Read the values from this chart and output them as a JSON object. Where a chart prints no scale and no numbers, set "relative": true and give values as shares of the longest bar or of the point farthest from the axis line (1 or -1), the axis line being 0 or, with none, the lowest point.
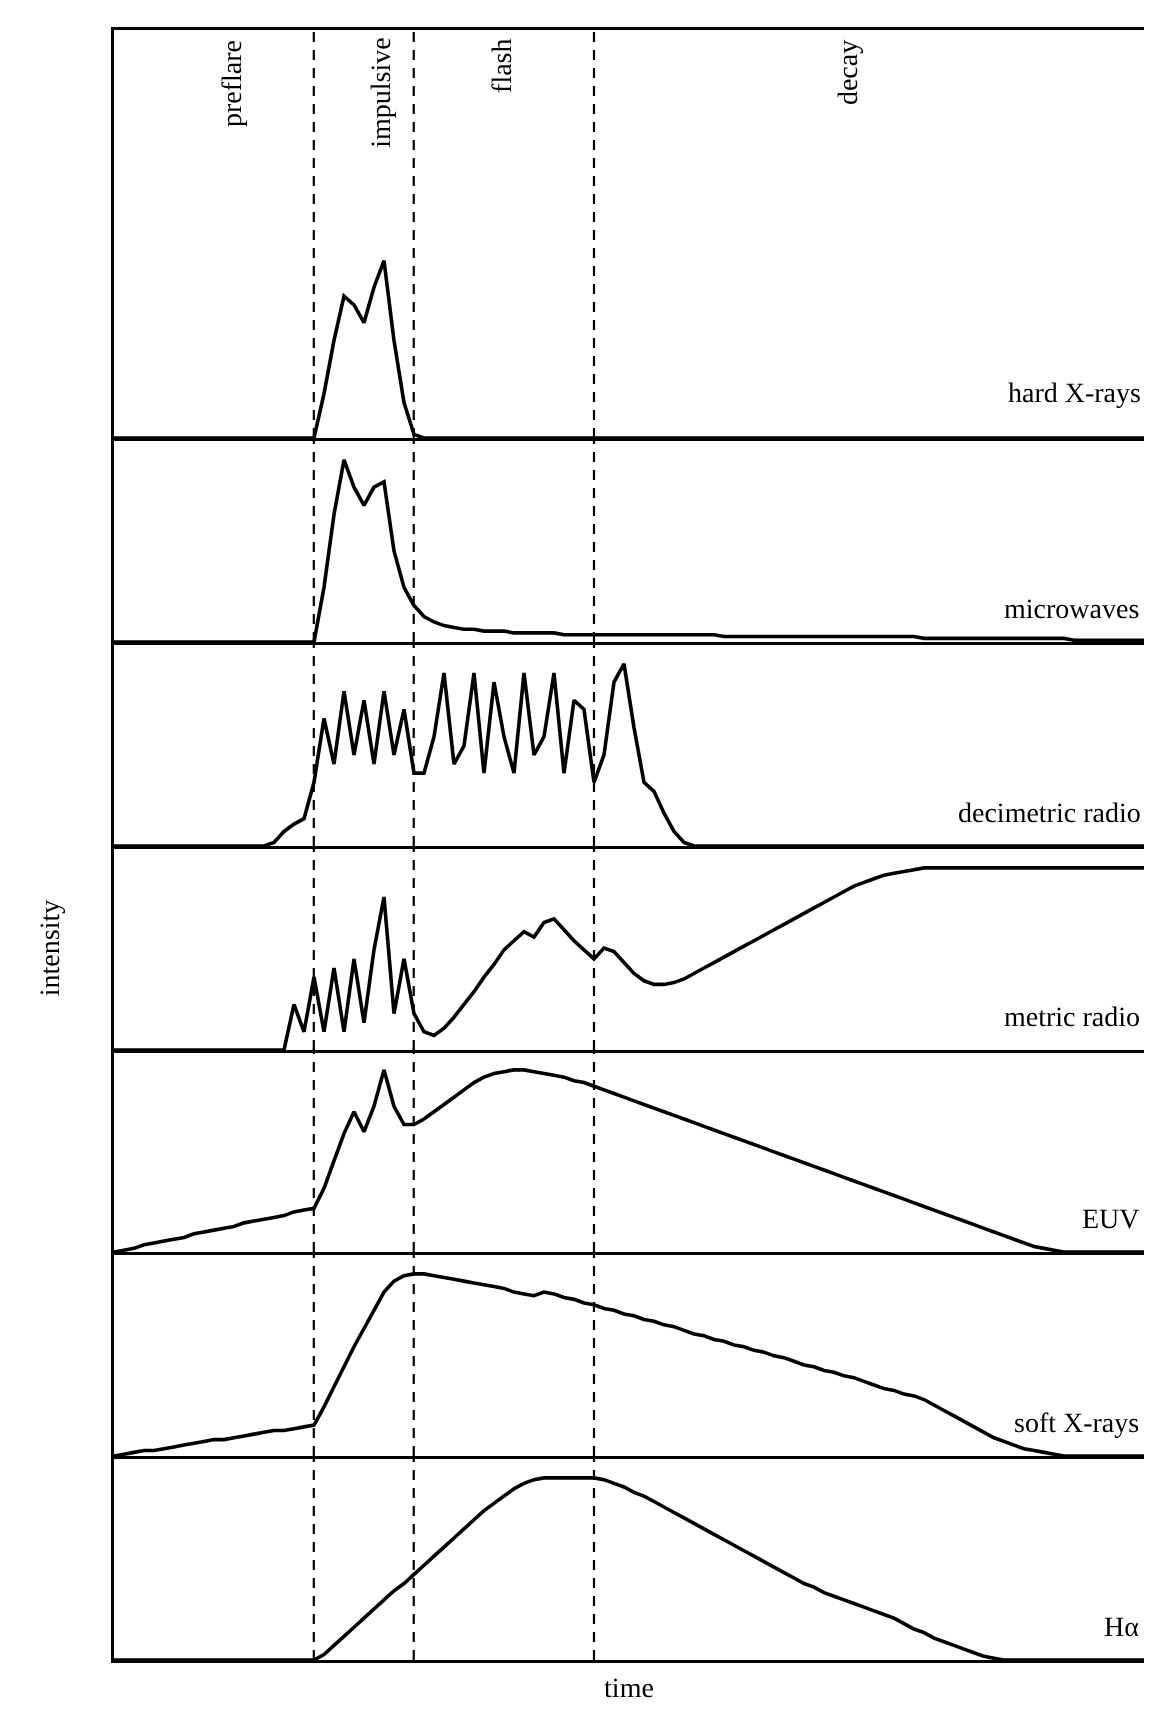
{
  "chart_data": [
    {
      "type": "line",
      "relative": true,
      "legend": false,
      "tick_labels": false,
      "categories": [
        null,
        null,
        null,
        null,
        null,
        null,
        null,
        null,
        null,
        null,
        null,
        null,
        null,
        null,
        null,
        null,
        null,
        null,
        null,
        null,
        null,
        null,
        null,
        null,
        null,
        null,
        null,
        null,
        null,
        null,
        null,
        null,
        null,
        null,
        null,
        null,
        null,
        null,
        null,
        null,
        null,
        null,
        null,
        null,
        null,
        null,
        null,
        null,
        null,
        null,
        null,
        null,
        null,
        null,
        null,
        null,
        null,
        null,
        null,
        null,
        null,
        null,
        null,
        null,
        null,
        null,
        null,
        null,
        null,
        null,
        null,
        null,
        null,
        null,
        null,
        null,
        null,
        null,
        null,
        null,
        null,
        null,
        null,
        null,
        null,
        null,
        null,
        null,
        null,
        null,
        null,
        null,
        null,
        null,
        null,
        null,
        null,
        null,
        null,
        null,
        null,
        null,
        null,
        null
      ],
      "annotations": [
        "preflare",
        "impulsive",
        "flash",
        "decay"
      ],
      "series": [
        {
          "name": "hard X-rays",
          "color": "#000000",
          "values": [
            0,
            0,
            0,
            0,
            0,
            0,
            0,
            0,
            0,
            0,
            0,
            0,
            0,
            0,
            0,
            0,
            0,
            0,
            0,
            0,
            0,
            0.25,
            0.55,
            0.8,
            0.75,
            0.65,
            0.85,
            1,
            0.55,
            0.2,
            0.02,
            0,
            0,
            0,
            0,
            0,
            0,
            0,
            0,
            0,
            0,
            0,
            0,
            0,
            0,
            0,
            0,
            0,
            0,
            0,
            0,
            0,
            0,
            0,
            0,
            0,
            0,
            0,
            0,
            0,
            0,
            0,
            0,
            0,
            0,
            0,
            0,
            0,
            0,
            0,
            0,
            0,
            0,
            0,
            0,
            0,
            0,
            0,
            0,
            0,
            0,
            0,
            0,
            0,
            0,
            0,
            0,
            0,
            0,
            0,
            0,
            0,
            0,
            0,
            0,
            0,
            0,
            0,
            0,
            0,
            0,
            0,
            0,
            0
          ]
        }
      ]
    },
    {
      "type": "line",
      "relative": true,
      "legend": false,
      "tick_labels": false,
      "categories": [
        null,
        null,
        null,
        null,
        null,
        null,
        null,
        null,
        null,
        null,
        null,
        null,
        null,
        null,
        null,
        null,
        null,
        null,
        null,
        null,
        null,
        null,
        null,
        null,
        null,
        null,
        null,
        null,
        null,
        null,
        null,
        null,
        null,
        null,
        null,
        null,
        null,
        null,
        null,
        null,
        null,
        null,
        null,
        null,
        null,
        null,
        null,
        null,
        null,
        null,
        null,
        null,
        null,
        null,
        null,
        null,
        null,
        null,
        null,
        null,
        null,
        null,
        null,
        null,
        null,
        null,
        null,
        null,
        null,
        null,
        null,
        null,
        null,
        null,
        null,
        null,
        null,
        null,
        null,
        null,
        null,
        null,
        null,
        null,
        null,
        null,
        null,
        null,
        null,
        null,
        null,
        null,
        null,
        null,
        null,
        null,
        null,
        null,
        null,
        null,
        null,
        null,
        null,
        null
      ],
      "series": [
        {
          "name": "microwaves",
          "color": "#000000",
          "values": [
            0,
            0,
            0,
            0,
            0,
            0,
            0,
            0,
            0,
            0,
            0,
            0,
            0,
            0,
            0,
            0,
            0,
            0,
            0,
            0,
            0,
            0.3,
            0.7,
            1,
            0.85,
            0.75,
            0.85,
            0.88,
            0.5,
            0.3,
            0.2,
            0.14,
            0.11,
            0.09,
            0.08,
            0.07,
            0.07,
            0.06,
            0.06,
            0.06,
            0.05,
            0.05,
            0.05,
            0.05,
            0.05,
            0.04,
            0.04,
            0.04,
            0.04,
            0.04,
            0.04,
            0.04,
            0.04,
            0.04,
            0.04,
            0.04,
            0.04,
            0.04,
            0.04,
            0.04,
            0.04,
            0.03,
            0.03,
            0.03,
            0.03,
            0.03,
            0.03,
            0.03,
            0.03,
            0.03,
            0.03,
            0.03,
            0.03,
            0.03,
            0.03,
            0.03,
            0.03,
            0.03,
            0.03,
            0.03,
            0.03,
            0.02,
            0.02,
            0.02,
            0.02,
            0.02,
            0.02,
            0.02,
            0.02,
            0.02,
            0.02,
            0.02,
            0.02,
            0.02,
            0.02,
            0.02,
            0.01,
            0.01,
            0.01,
            0.01,
            0.01,
            0.01,
            0.01,
            0.01
          ]
        }
      ]
    },
    {
      "type": "line",
      "relative": true,
      "legend": false,
      "tick_labels": false,
      "categories": [
        null,
        null,
        null,
        null,
        null,
        null,
        null,
        null,
        null,
        null,
        null,
        null,
        null,
        null,
        null,
        null,
        null,
        null,
        null,
        null,
        null,
        null,
        null,
        null,
        null,
        null,
        null,
        null,
        null,
        null,
        null,
        null,
        null,
        null,
        null,
        null,
        null,
        null,
        null,
        null,
        null,
        null,
        null,
        null,
        null,
        null,
        null,
        null,
        null,
        null,
        null,
        null,
        null,
        null,
        null,
        null,
        null,
        null,
        null,
        null,
        null,
        null,
        null,
        null,
        null,
        null,
        null,
        null,
        null,
        null,
        null,
        null,
        null,
        null,
        null,
        null,
        null,
        null,
        null,
        null,
        null,
        null,
        null,
        null,
        null,
        null,
        null,
        null,
        null,
        null,
        null,
        null,
        null,
        null,
        null,
        null,
        null,
        null,
        null,
        null,
        null,
        null,
        null,
        null
      ],
      "series": [
        {
          "name": "decimetric radio",
          "color": "#000000",
          "values": [
            0,
            0,
            0,
            0,
            0,
            0,
            0,
            0,
            0,
            0,
            0,
            0,
            0,
            0,
            0,
            0,
            0.02,
            0.08,
            0.12,
            0.15,
            0.35,
            0.7,
            0.45,
            0.85,
            0.5,
            0.8,
            0.45,
            0.85,
            0.5,
            0.75,
            0.4,
            0.4,
            0.6,
            0.95,
            0.45,
            0.55,
            0.95,
            0.4,
            0.9,
            0.6,
            0.4,
            0.95,
            0.5,
            0.6,
            0.95,
            0.4,
            0.8,
            0.75,
            0.35,
            0.5,
            0.9,
            1,
            0.65,
            0.35,
            0.3,
            0.18,
            0.08,
            0.02,
            0,
            0,
            0,
            0,
            0,
            0,
            0,
            0,
            0,
            0,
            0,
            0,
            0,
            0,
            0,
            0,
            0,
            0,
            0,
            0,
            0,
            0,
            0,
            0,
            0,
            0,
            0,
            0,
            0,
            0,
            0,
            0,
            0,
            0,
            0,
            0,
            0,
            0,
            0,
            0,
            0,
            0,
            0,
            0,
            0,
            0
          ]
        }
      ]
    },
    {
      "type": "line",
      "relative": true,
      "legend": false,
      "tick_labels": false,
      "ylabel": "intensity",
      "categories": [
        null,
        null,
        null,
        null,
        null,
        null,
        null,
        null,
        null,
        null,
        null,
        null,
        null,
        null,
        null,
        null,
        null,
        null,
        null,
        null,
        null,
        null,
        null,
        null,
        null,
        null,
        null,
        null,
        null,
        null,
        null,
        null,
        null,
        null,
        null,
        null,
        null,
        null,
        null,
        null,
        null,
        null,
        null,
        null,
        null,
        null,
        null,
        null,
        null,
        null,
        null,
        null,
        null,
        null,
        null,
        null,
        null,
        null,
        null,
        null,
        null,
        null,
        null,
        null,
        null,
        null,
        null,
        null,
        null,
        null,
        null,
        null,
        null,
        null,
        null,
        null,
        null,
        null,
        null,
        null,
        null,
        null,
        null,
        null,
        null,
        null,
        null,
        null,
        null,
        null,
        null,
        null,
        null,
        null,
        null,
        null,
        null,
        null,
        null,
        null,
        null,
        null,
        null,
        null
      ],
      "series": [
        {
          "name": "metric radio",
          "color": "#000000",
          "values": [
            0,
            0,
            0,
            0,
            0,
            0,
            0,
            0,
            0,
            0,
            0,
            0,
            0,
            0,
            0,
            0,
            0,
            0,
            0.25,
            0.1,
            0.4,
            0.1,
            0.45,
            0.1,
            0.5,
            0.15,
            0.55,
            0.84,
            0.2,
            0.5,
            0.2,
            0.1,
            0.08,
            0.12,
            0.18,
            0.25,
            0.32,
            0.4,
            0.47,
            0.55,
            0.6,
            0.65,
            0.62,
            0.7,
            0.72,
            0.66,
            0.6,
            0.55,
            0.5,
            0.56,
            0.54,
            0.48,
            0.42,
            0.38,
            0.36,
            0.36,
            0.37,
            0.39,
            0.42,
            0.45,
            0.48,
            0.51,
            0.54,
            0.57,
            0.6,
            0.63,
            0.66,
            0.69,
            0.72,
            0.75,
            0.78,
            0.81,
            0.84,
            0.87,
            0.9,
            0.92,
            0.94,
            0.96,
            0.97,
            0.98,
            0.99,
            1,
            1,
            1,
            1,
            1,
            1,
            1,
            1,
            1,
            1,
            1,
            1,
            1,
            1,
            1,
            1,
            1,
            1,
            1,
            1,
            1,
            1,
            1
          ]
        }
      ]
    },
    {
      "type": "line",
      "relative": true,
      "legend": false,
      "tick_labels": false,
      "categories": [
        null,
        null,
        null,
        null,
        null,
        null,
        null,
        null,
        null,
        null,
        null,
        null,
        null,
        null,
        null,
        null,
        null,
        null,
        null,
        null,
        null,
        null,
        null,
        null,
        null,
        null,
        null,
        null,
        null,
        null,
        null,
        null,
        null,
        null,
        null,
        null,
        null,
        null,
        null,
        null,
        null,
        null,
        null,
        null,
        null,
        null,
        null,
        null,
        null,
        null,
        null,
        null,
        null,
        null,
        null,
        null,
        null,
        null,
        null,
        null,
        null,
        null,
        null,
        null,
        null,
        null,
        null,
        null,
        null,
        null,
        null,
        null,
        null,
        null,
        null,
        null,
        null,
        null,
        null,
        null,
        null,
        null,
        null,
        null,
        null,
        null,
        null,
        null,
        null,
        null,
        null,
        null,
        null,
        null,
        null,
        null,
        null,
        null,
        null,
        null,
        null,
        null,
        null,
        null
      ],
      "series": [
        {
          "name": "EUV",
          "color": "#000000",
          "values": [
            0,
            0.01,
            0.02,
            0.04,
            0.05,
            0.06,
            0.07,
            0.08,
            0.1,
            0.11,
            0.12,
            0.13,
            0.14,
            0.16,
            0.17,
            0.18,
            0.19,
            0.2,
            0.22,
            0.23,
            0.24,
            0.35,
            0.5,
            0.65,
            0.77,
            0.66,
            0.8,
            1,
            0.8,
            0.7,
            0.7,
            0.73,
            0.77,
            0.81,
            0.85,
            0.89,
            0.93,
            0.96,
            0.98,
            0.99,
            1,
            1,
            0.99,
            0.98,
            0.97,
            0.96,
            0.94,
            0.93,
            0.91,
            0.89,
            0.87,
            0.85,
            0.83,
            0.81,
            0.79,
            0.77,
            0.75,
            0.73,
            0.71,
            0.69,
            0.67,
            0.65,
            0.63,
            0.61,
            0.59,
            0.57,
            0.55,
            0.53,
            0.51,
            0.49,
            0.47,
            0.45,
            0.43,
            0.41,
            0.39,
            0.37,
            0.35,
            0.33,
            0.31,
            0.29,
            0.27,
            0.25,
            0.23,
            0.21,
            0.19,
            0.17,
            0.15,
            0.13,
            0.11,
            0.09,
            0.07,
            0.05,
            0.03,
            0.02,
            0.01,
            0,
            0,
            0,
            0,
            0,
            0,
            0,
            0,
            0
          ]
        }
      ]
    },
    {
      "type": "line",
      "relative": true,
      "legend": false,
      "tick_labels": false,
      "categories": [
        null,
        null,
        null,
        null,
        null,
        null,
        null,
        null,
        null,
        null,
        null,
        null,
        null,
        null,
        null,
        null,
        null,
        null,
        null,
        null,
        null,
        null,
        null,
        null,
        null,
        null,
        null,
        null,
        null,
        null,
        null,
        null,
        null,
        null,
        null,
        null,
        null,
        null,
        null,
        null,
        null,
        null,
        null,
        null,
        null,
        null,
        null,
        null,
        null,
        null,
        null,
        null,
        null,
        null,
        null,
        null,
        null,
        null,
        null,
        null,
        null,
        null,
        null,
        null,
        null,
        null,
        null,
        null,
        null,
        null,
        null,
        null,
        null,
        null,
        null,
        null,
        null,
        null,
        null,
        null,
        null,
        null,
        null,
        null,
        null,
        null,
        null,
        null,
        null,
        null,
        null,
        null,
        null,
        null,
        null,
        null,
        null,
        null,
        null,
        null,
        null,
        null,
        null,
        null
      ],
      "series": [
        {
          "name": "soft X-rays",
          "color": "#000000",
          "values": [
            0,
            0.01,
            0.02,
            0.03,
            0.03,
            0.04,
            0.05,
            0.06,
            0.07,
            0.08,
            0.09,
            0.09,
            0.1,
            0.11,
            0.12,
            0.13,
            0.14,
            0.14,
            0.15,
            0.16,
            0.17,
            0.27,
            0.38,
            0.49,
            0.6,
            0.7,
            0.8,
            0.9,
            0.96,
            0.99,
            1,
            1,
            0.99,
            0.98,
            0.97,
            0.96,
            0.95,
            0.94,
            0.93,
            0.92,
            0.9,
            0.89,
            0.88,
            0.9,
            0.89,
            0.87,
            0.86,
            0.84,
            0.83,
            0.81,
            0.8,
            0.78,
            0.77,
            0.75,
            0.74,
            0.72,
            0.71,
            0.69,
            0.67,
            0.66,
            0.64,
            0.63,
            0.61,
            0.6,
            0.58,
            0.57,
            0.55,
            0.54,
            0.52,
            0.5,
            0.49,
            0.47,
            0.46,
            0.44,
            0.43,
            0.41,
            0.39,
            0.37,
            0.36,
            0.34,
            0.33,
            0.31,
            0.28,
            0.25,
            0.22,
            0.19,
            0.16,
            0.13,
            0.1,
            0.08,
            0.06,
            0.04,
            0.03,
            0.02,
            0.01,
            0,
            0,
            0,
            0,
            0,
            0,
            0,
            0,
            0
          ]
        }
      ]
    },
    {
      "type": "line",
      "relative": true,
      "legend": false,
      "tick_labels": false,
      "xlabel": "time",
      "categories": [
        null,
        null,
        null,
        null,
        null,
        null,
        null,
        null,
        null,
        null,
        null,
        null,
        null,
        null,
        null,
        null,
        null,
        null,
        null,
        null,
        null,
        null,
        null,
        null,
        null,
        null,
        null,
        null,
        null,
        null,
        null,
        null,
        null,
        null,
        null,
        null,
        null,
        null,
        null,
        null,
        null,
        null,
        null,
        null,
        null,
        null,
        null,
        null,
        null,
        null,
        null,
        null,
        null,
        null,
        null,
        null,
        null,
        null,
        null,
        null,
        null,
        null,
        null,
        null,
        null,
        null,
        null,
        null,
        null,
        null,
        null,
        null,
        null,
        null,
        null,
        null,
        null,
        null,
        null,
        null,
        null,
        null,
        null,
        null,
        null,
        null,
        null,
        null,
        null,
        null,
        null,
        null,
        null,
        null,
        null,
        null,
        null,
        null,
        null,
        null,
        null,
        null,
        null,
        null
      ],
      "series": [
        {
          "name": "Hα",
          "color": "#000000",
          "values": [
            0,
            0,
            0,
            0,
            0,
            0,
            0,
            0,
            0,
            0,
            0,
            0,
            0,
            0,
            0,
            0,
            0,
            0,
            0,
            0,
            0,
            0.03,
            0.08,
            0.13,
            0.18,
            0.23,
            0.28,
            0.33,
            0.38,
            0.42,
            0.47,
            0.52,
            0.57,
            0.62,
            0.67,
            0.72,
            0.77,
            0.82,
            0.86,
            0.9,
            0.94,
            0.97,
            0.99,
            1,
            1,
            1,
            1,
            1,
            1,
            0.99,
            0.97,
            0.95,
            0.92,
            0.9,
            0.87,
            0.84,
            0.81,
            0.78,
            0.75,
            0.72,
            0.69,
            0.66,
            0.63,
            0.6,
            0.57,
            0.54,
            0.51,
            0.48,
            0.45,
            0.42,
            0.4,
            0.37,
            0.35,
            0.33,
            0.31,
            0.29,
            0.27,
            0.25,
            0.23,
            0.2,
            0.17,
            0.15,
            0.12,
            0.1,
            0.08,
            0.06,
            0.04,
            0.02,
            0.01,
            0,
            0,
            0,
            0,
            0,
            0,
            0,
            0,
            0,
            0,
            0,
            0,
            0,
            0,
            0
          ]
        }
      ]
    }
  ]
}
